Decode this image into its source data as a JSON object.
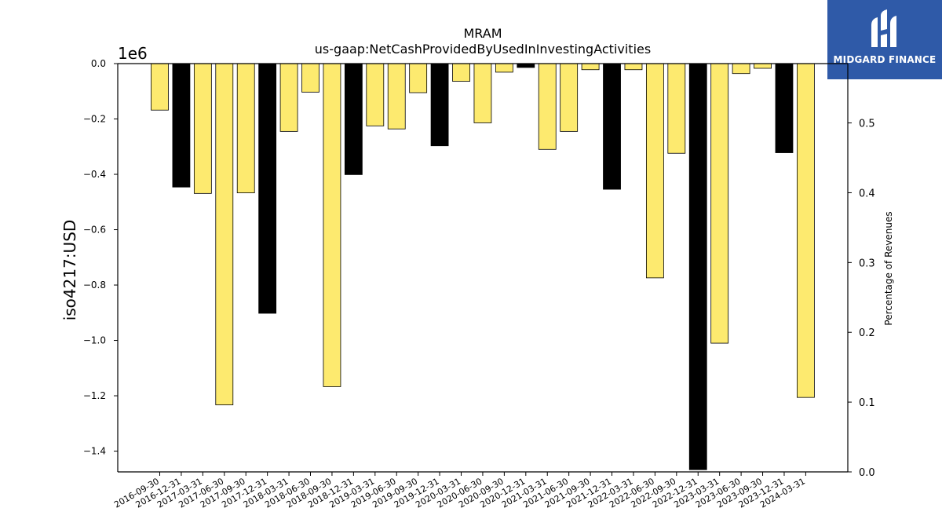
{
  "brand": {
    "name": "MIDGARD FINANCE",
    "bg_color": "#2f5aa8"
  },
  "chart_data": {
    "type": "bar",
    "title": "MRAM",
    "subtitle": "us-gaap:NetCashProvidedByUsedInInvestingActivities",
    "ylabel": "iso4217:USD",
    "y2label": "Percentage of Revenues",
    "y_offset_label": "1e6",
    "ylim": [
      -1.475,
      0.0
    ],
    "y2lim": [
      0.0,
      0.585
    ],
    "y_ticks": [
      "0.0",
      "−0.2",
      "−0.4",
      "−0.6",
      "−0.8",
      "−1.0",
      "−1.2",
      "−1.4"
    ],
    "y2_ticks": [
      "0.0",
      "0.1",
      "0.2",
      "0.3",
      "0.4",
      "0.5"
    ],
    "categories": [
      "2016-09-30",
      "2016-12-31",
      "2017-03-31",
      "2017-06-30",
      "2017-09-30",
      "2017-12-31",
      "2018-03-31",
      "2018-06-30",
      "2018-09-30",
      "2018-12-31",
      "2019-03-31",
      "2019-06-30",
      "2019-09-30",
      "2019-12-31",
      "2020-03-31",
      "2020-06-30",
      "2020-09-30",
      "2020-12-31",
      "2021-03-31",
      "2021-06-30",
      "2021-09-30",
      "2021-12-31",
      "2022-03-31",
      "2022-06-30",
      "2022-09-30",
      "2022-12-31",
      "2023-03-31",
      "2023-06-30",
      "2023-09-30",
      "2023-12-31",
      "2024-03-31"
    ],
    "values": [
      -0.168,
      -0.446,
      -0.469,
      -1.233,
      -0.467,
      -0.902,
      -0.245,
      -0.103,
      -1.167,
      -0.401,
      -0.225,
      -0.236,
      -0.105,
      -0.297,
      -0.064,
      -0.214,
      -0.031,
      -0.014,
      -0.31,
      -0.245,
      -0.022,
      -0.454,
      -0.022,
      -0.774,
      -0.324,
      -1.467,
      -1.01,
      -0.036,
      -0.017,
      -0.322,
      -1.206
    ],
    "bar_colors": [
      "yellow",
      "black",
      "yellow",
      "yellow",
      "yellow",
      "black",
      "yellow",
      "yellow",
      "yellow",
      "black",
      "yellow",
      "yellow",
      "yellow",
      "black",
      "yellow",
      "yellow",
      "yellow",
      "black",
      "yellow",
      "yellow",
      "yellow",
      "black",
      "yellow",
      "yellow",
      "yellow",
      "black",
      "yellow",
      "yellow",
      "yellow",
      "black",
      "yellow"
    ],
    "colors": {
      "yellow": "#fdea6f",
      "black": "#000000"
    },
    "grid": false
  }
}
